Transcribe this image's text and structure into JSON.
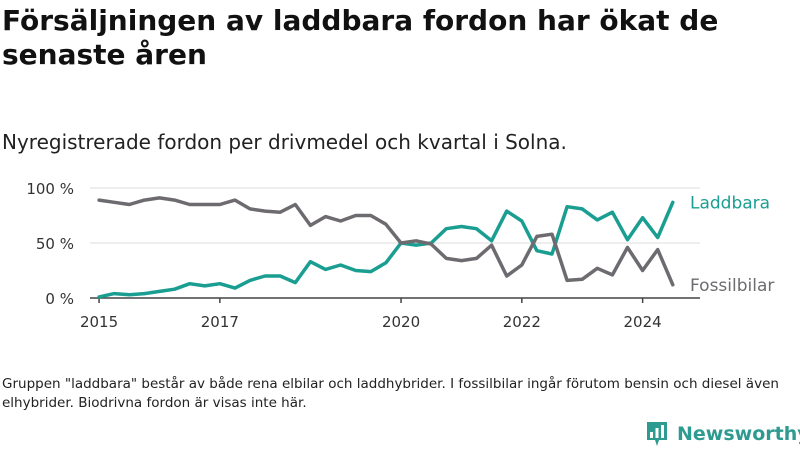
{
  "title": "Försäljningen av laddbara fordon har ökat de senaste åren",
  "subtitle": "Nyregistrerade fordon per drivmedel och kvartal i Solna.",
  "note": "Gruppen \"laddbara\" består av både rena elbilar och laddhybrider. I fossilbilar ingår förutom bensin och diesel även elhybrider. Biodrivna fordon är visas inte här.",
  "brand": {
    "name": "Newsworthy",
    "color": "#2d9b8f",
    "icon": "bar-chart-pin-icon"
  },
  "chart_data": {
    "type": "line",
    "title": "",
    "xlabel": "",
    "ylabel": "",
    "xlim": [
      2014.85,
      2024.95
    ],
    "ylim": [
      0,
      100
    ],
    "x_ticks": [
      2015,
      2017,
      2020,
      2022,
      2024
    ],
    "x_tick_labels": [
      "2015",
      "2017",
      "2020",
      "2022",
      "2024"
    ],
    "y_ticks": [
      0,
      50,
      100
    ],
    "y_tick_labels": [
      "0 %",
      "50 %",
      "100 %"
    ],
    "grid": true,
    "legend": "direct-labels-right",
    "x": [
      2015.0,
      2015.25,
      2015.5,
      2015.75,
      2016.0,
      2016.25,
      2016.5,
      2016.75,
      2017.0,
      2017.25,
      2017.5,
      2017.75,
      2018.0,
      2018.25,
      2018.5,
      2018.75,
      2019.0,
      2019.25,
      2019.5,
      2019.75,
      2020.0,
      2020.25,
      2020.5,
      2020.75,
      2021.0,
      2021.25,
      2021.5,
      2021.75,
      2022.0,
      2022.25,
      2022.5,
      2022.75,
      2023.0,
      2023.25,
      2023.5,
      2023.75,
      2024.0,
      2024.25,
      2024.5
    ],
    "series": [
      {
        "name": "Laddbara",
        "color": "#1a9e92",
        "values": [
          1,
          4,
          3,
          4,
          6,
          8,
          13,
          11,
          13,
          9,
          16,
          20,
          20,
          14,
          33,
          26,
          30,
          25,
          24,
          32,
          50,
          48,
          50,
          63,
          65,
          63,
          52,
          79,
          70,
          43,
          40,
          83,
          81,
          71,
          78,
          53,
          73,
          55,
          87
        ]
      },
      {
        "name": "Fossilbilar",
        "color": "#6e6b70",
        "values": [
          89,
          87,
          85,
          89,
          91,
          89,
          85,
          85,
          85,
          89,
          81,
          79,
          78,
          85,
          66,
          74,
          70,
          75,
          75,
          67,
          50,
          52,
          49,
          36,
          34,
          36,
          48,
          20,
          30,
          56,
          58,
          16,
          17,
          27,
          21,
          46,
          25,
          44,
          12
        ]
      }
    ]
  }
}
